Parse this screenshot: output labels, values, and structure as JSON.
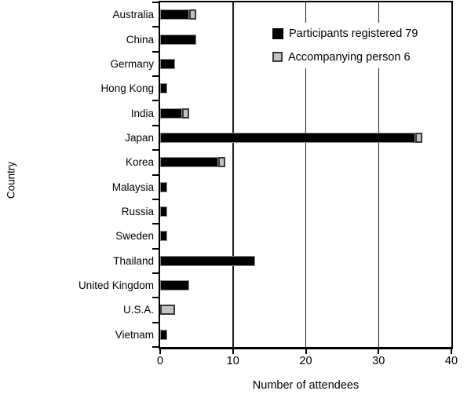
{
  "chart_data": {
    "type": "bar",
    "orientation": "horizontal",
    "stacked": true,
    "title": "",
    "xlabel": "Number of attendees",
    "ylabel": "Country",
    "xlim": [
      0,
      40
    ],
    "xticks": [
      0,
      10,
      20,
      30,
      40
    ],
    "grid": "vertical-gridlines-at-xticks",
    "legend_position": "inside-top-right",
    "categories": [
      "Australia",
      "China",
      "Germany",
      "Hong Kong",
      "India",
      "Japan",
      "Korea",
      "Malaysia",
      "Russia",
      "Sweden",
      "Thailand",
      "United Kingdom",
      "U.S.A.",
      "Vietnam"
    ],
    "series": [
      {
        "name": "Participants registered 79",
        "total_shown": 79,
        "color": "#000000",
        "values": [
          4,
          5,
          2,
          1,
          3,
          35,
          8,
          1,
          1,
          1,
          13,
          4,
          0,
          1
        ]
      },
      {
        "name": "Accompanying person 6",
        "total_shown": 6,
        "color": "#c3c3c3",
        "values": [
          1,
          0,
          0,
          0,
          1,
          1,
          1,
          0,
          0,
          0,
          0,
          0,
          2,
          0
        ]
      }
    ]
  }
}
